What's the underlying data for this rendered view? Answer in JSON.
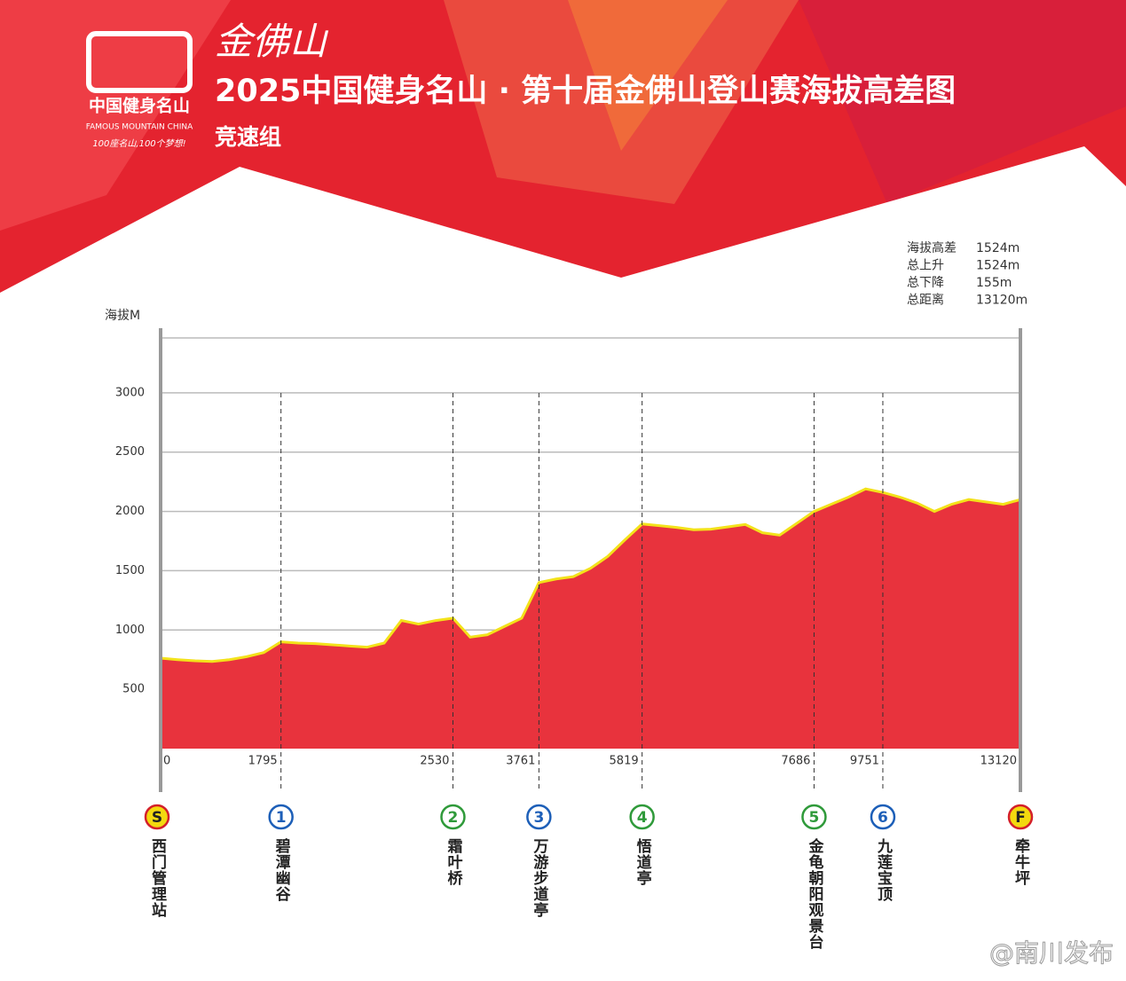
{
  "header": {
    "brand_script": "金佛山",
    "title": "2025中国健身名山 · 第十届金佛山登山赛海拔高差图",
    "subtitle": "竞速组",
    "logo_name": "中国健身名山",
    "logo_en": "FAMOUS MOUNTAIN CHINA",
    "logo_slogan": "100座名山,100个梦想!"
  },
  "stats": [
    {
      "label": "海拔高差",
      "value": "1524m"
    },
    {
      "label": "总上升",
      "value": "1524m"
    },
    {
      "label": "总下降",
      "value": "155m"
    },
    {
      "label": "总距离",
      "value": "13120m"
    }
  ],
  "chart_data": {
    "type": "area",
    "y_label": "海拔M",
    "categories": [
      "0",
      null,
      null,
      null,
      null,
      null,
      null,
      "1795",
      null,
      null,
      null,
      null,
      null,
      null,
      null,
      null,
      null,
      "2530",
      null,
      null,
      null,
      null,
      "3761",
      null,
      null,
      null,
      null,
      null,
      "5819",
      null,
      null,
      null,
      null,
      null,
      null,
      null,
      null,
      null,
      "7686",
      null,
      null,
      null,
      "9751",
      null,
      null,
      null,
      null,
      null,
      null,
      null,
      "13120"
    ],
    "values": [
      763,
      750,
      740,
      735,
      750,
      775,
      810,
      900,
      890,
      885,
      875,
      865,
      855,
      890,
      1080,
      1050,
      1080,
      1100,
      940,
      960,
      1030,
      1100,
      1400,
      1430,
      1450,
      1520,
      1620,
      1760,
      1894,
      1880,
      1865,
      1845,
      1850,
      1870,
      1890,
      1820,
      1800,
      1900,
      2000,
      2060,
      2120,
      2190,
      2160,
      2120,
      2070,
      2000,
      2060,
      2100,
      2080,
      2060,
      2100
    ],
    "ylim": [
      0,
      3500
    ],
    "yticks": [
      500,
      1000,
      1500,
      2000,
      2500,
      3000
    ],
    "grid": true,
    "color": "#e8333d",
    "line_color": "#f3e21a",
    "stations": [
      {
        "marker": "S",
        "name": "西门管理站",
        "color": "#f3d90f"
      },
      {
        "marker": "1",
        "name": "碧潭幽谷",
        "color": "#1d5fb8"
      },
      {
        "marker": "2",
        "name": "霜叶桥",
        "color": "#2f9a3a"
      },
      {
        "marker": "3",
        "name": "万游步道亭",
        "color": "#1d5fb8"
      },
      {
        "marker": "4",
        "name": "悟道亭",
        "color": "#2f9a3a"
      },
      {
        "marker": "5",
        "name": "金龟朝阳观景台",
        "color": "#2f9a3a"
      },
      {
        "marker": "6",
        "name": "九莲宝顶",
        "color": "#1d5fb8"
      },
      {
        "marker": "F",
        "name": "牵牛坪",
        "color": "#f3d90f"
      }
    ]
  },
  "watermark": "@南川发布"
}
